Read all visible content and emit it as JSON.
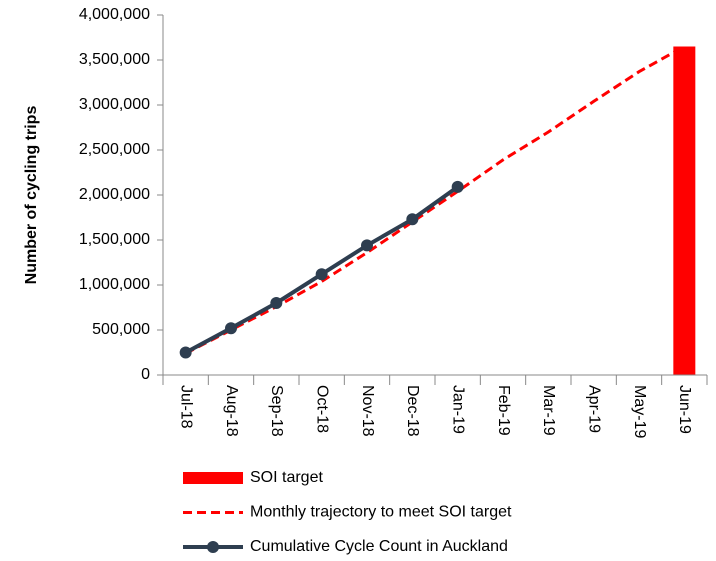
{
  "chart_data": {
    "type": "combo",
    "y_label": "Number of cycling trips",
    "categories": [
      "Jul-18",
      "Aug-18",
      "Sep-18",
      "Oct-18",
      "Nov-18",
      "Dec-18",
      "Jan-19",
      "Feb-19",
      "Mar-19",
      "Apr-19",
      "May-19",
      "Jun-19"
    ],
    "series": [
      {
        "name": "SOI target",
        "type": "bar",
        "color": "#ff0000",
        "values": [
          null,
          null,
          null,
          null,
          null,
          null,
          null,
          null,
          null,
          null,
          null,
          3650000
        ]
      },
      {
        "name": "Monthly trajectory to meet SOI target",
        "type": "line",
        "line_style": "dashed",
        "color": "#ff0000",
        "values": [
          240000,
          500000,
          760000,
          1040000,
          1360000,
          1700000,
          2040000,
          2390000,
          2700000,
          3040000,
          3370000,
          3650000
        ]
      },
      {
        "name": "Cumulative Cycle Count in Auckland",
        "type": "line",
        "line_style": "solid",
        "markers": true,
        "color": "#2e3e50",
        "values": [
          250000,
          520000,
          800000,
          1120000,
          1440000,
          1730000,
          2090000,
          null,
          null,
          null,
          null,
          null
        ]
      }
    ],
    "ylim": [
      0,
      4000000
    ],
    "yticks": [
      0,
      {
        "value": 500000,
        "label": "500,000"
      },
      {
        "value": 1000000,
        "label": "1,000,000"
      },
      {
        "value": 1500000,
        "label": "1,500,000"
      },
      {
        "value": 2000000,
        "label": "2,000,000"
      },
      {
        "value": 2500000,
        "label": "2,500,000"
      },
      {
        "value": 3000000,
        "label": "3,000,000"
      },
      {
        "value": 3500000,
        "label": "3,500,000"
      },
      {
        "value": 4000000,
        "label": "4,000,000"
      }
    ],
    "grid": false,
    "legend": "bottom"
  }
}
